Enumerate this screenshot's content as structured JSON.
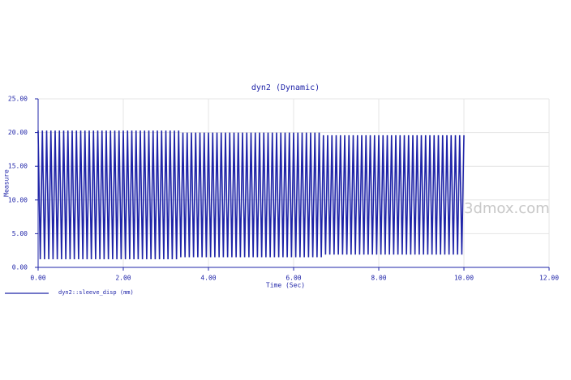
{
  "chart_data": {
    "type": "line",
    "title": "dyn2 (Dynamic)",
    "x_label": "Time (Sec)",
    "y_label": "Measure",
    "watermark": "3dmox.com",
    "xlim": [
      0,
      12
    ],
    "ylim": [
      0,
      25
    ],
    "xticks": [
      {
        "value": 0,
        "label": "0.00"
      },
      {
        "value": 2,
        "label": "2.00"
      },
      {
        "value": 4,
        "label": "4.00"
      },
      {
        "value": 6,
        "label": "6.00"
      },
      {
        "value": 8,
        "label": "8.00"
      },
      {
        "value": 10,
        "label": "10.00"
      },
      {
        "value": 12,
        "label": "12.00"
      }
    ],
    "yticks": [
      {
        "value": 0,
        "label": "0.00"
      },
      {
        "value": 5,
        "label": "5.00"
      },
      {
        "value": 10,
        "label": "10.00"
      },
      {
        "value": 15,
        "label": "15.00"
      },
      {
        "value": 20,
        "label": "20.00"
      },
      {
        "value": 25,
        "label": "25.00"
      }
    ],
    "grid": true,
    "x": [
      0,
      0.05,
      0.1,
      0.15,
      0.2,
      0.25,
      0.3,
      0.35,
      0.4,
      0.45,
      0.5,
      0.55,
      0.6,
      0.65,
      0.7,
      0.75,
      0.8,
      0.85,
      0.9,
      0.95,
      1,
      1.05,
      1.1,
      1.15,
      1.2,
      1.25,
      1.3,
      1.35,
      1.4,
      1.45,
      1.5,
      1.55,
      1.6,
      1.65,
      1.7,
      1.75,
      1.8,
      1.85,
      1.9,
      1.95,
      2,
      2.05,
      2.1,
      2.15,
      2.2,
      2.25,
      2.3,
      2.35,
      2.4,
      2.45,
      2.5,
      2.55,
      2.6,
      2.65,
      2.7,
      2.75,
      2.8,
      2.85,
      2.9,
      2.95,
      3,
      3.05,
      3.1,
      3.15,
      3.2,
      3.25,
      3.3,
      3.35,
      3.4,
      3.45,
      3.5,
      3.55,
      3.6,
      3.65,
      3.7,
      3.75,
      3.8,
      3.85,
      3.9,
      3.95,
      4,
      4.05,
      4.1,
      4.15,
      4.2,
      4.25,
      4.3,
      4.35,
      4.4,
      4.45,
      4.5,
      4.55,
      4.6,
      4.65,
      4.7,
      4.75,
      4.8,
      4.85,
      4.9,
      4.95,
      5,
      5.05,
      5.1,
      5.15,
      5.2,
      5.25,
      5.3,
      5.35,
      5.4,
      5.45,
      5.5,
      5.55,
      5.6,
      5.65,
      5.7,
      5.75,
      5.8,
      5.85,
      5.9,
      5.95,
      6,
      6.05,
      6.1,
      6.15,
      6.2,
      6.25,
      6.3,
      6.35,
      6.4,
      6.45,
      6.5,
      6.55,
      6.6,
      6.65,
      6.7,
      6.75,
      6.8,
      6.85,
      6.9,
      6.95,
      7,
      7.05,
      7.1,
      7.15,
      7.2,
      7.25,
      7.3,
      7.35,
      7.4,
      7.45,
      7.5,
      7.55,
      7.6,
      7.65,
      7.7,
      7.75,
      7.8,
      7.85,
      7.9,
      7.95,
      8,
      8.05,
      8.1,
      8.15,
      8.2,
      8.25,
      8.3,
      8.35,
      8.4,
      8.45,
      8.5,
      8.55,
      8.6,
      8.65,
      8.7,
      8.75,
      8.8,
      8.85,
      8.9,
      8.95,
      9,
      9.05,
      9.1,
      9.15,
      9.2,
      9.25,
      9.3,
      9.35,
      9.4,
      9.45,
      9.5,
      9.55,
      9.6,
      9.65,
      9.7,
      9.75,
      9.8,
      9.85,
      9.9,
      9.95,
      10
    ],
    "series": [
      {
        "name": "dyn2::sleeve_disp (mm)",
        "color": "#1f24a8",
        "values": [
          20.3,
          1.2,
          20.3,
          1.2,
          20.3,
          1.2,
          20.3,
          1.2,
          20.3,
          1.2,
          20.3,
          1.2,
          20.3,
          1.2,
          20.3,
          1.2,
          20.3,
          1.2,
          20.3,
          1.2,
          20.3,
          1.2,
          20.3,
          1.2,
          20.3,
          1.2,
          20.3,
          1.2,
          20.3,
          1.2,
          20.3,
          1.2,
          20.3,
          1.2,
          20.3,
          1.2,
          20.3,
          1.2,
          20.3,
          1.2,
          20.3,
          1.2,
          20.3,
          1.2,
          20.3,
          1.2,
          20.3,
          1.2,
          20.3,
          1.2,
          20.3,
          1.2,
          20.3,
          1.2,
          20.3,
          1.2,
          20.3,
          1.2,
          20.3,
          1.2,
          20.3,
          1.2,
          20.3,
          1.2,
          20.3,
          1.2,
          20.3,
          1.5,
          20.0,
          1.5,
          20.0,
          1.5,
          20.0,
          1.5,
          20.0,
          1.5,
          20.0,
          1.5,
          20.0,
          1.5,
          20.0,
          1.5,
          20.0,
          1.5,
          20.0,
          1.5,
          20.0,
          1.5,
          20.0,
          1.5,
          20.0,
          1.5,
          20.0,
          1.5,
          20.0,
          1.5,
          20.0,
          1.5,
          20.0,
          1.5,
          20.0,
          1.5,
          20.0,
          1.5,
          20.0,
          1.5,
          20.0,
          1.5,
          20.0,
          1.5,
          20.0,
          1.5,
          20.0,
          1.5,
          20.0,
          1.5,
          20.0,
          1.5,
          20.0,
          1.5,
          20.0,
          1.5,
          20.0,
          1.5,
          20.0,
          1.5,
          20.0,
          1.5,
          20.0,
          1.5,
          20.0,
          1.5,
          20.0,
          1.5,
          19.6,
          1.9,
          19.6,
          1.9,
          19.6,
          1.9,
          19.6,
          1.9,
          19.6,
          1.9,
          19.6,
          1.9,
          19.6,
          1.9,
          19.6,
          1.9,
          19.6,
          1.9,
          19.6,
          1.9,
          19.6,
          1.9,
          19.6,
          1.9,
          19.6,
          1.9,
          19.6,
          1.9,
          19.6,
          1.9,
          19.6,
          1.9,
          19.6,
          1.9,
          19.6,
          1.9,
          19.6,
          1.9,
          19.6,
          1.9,
          19.6,
          1.9,
          19.6,
          1.9,
          19.6,
          1.9,
          19.6,
          1.9,
          19.6,
          1.9,
          19.6,
          1.9,
          19.6,
          1.9,
          19.6,
          1.9,
          19.6,
          1.9,
          19.6,
          1.9,
          19.6,
          1.9,
          19.6,
          1.9,
          19.6,
          1.9,
          19.6
        ]
      }
    ]
  }
}
